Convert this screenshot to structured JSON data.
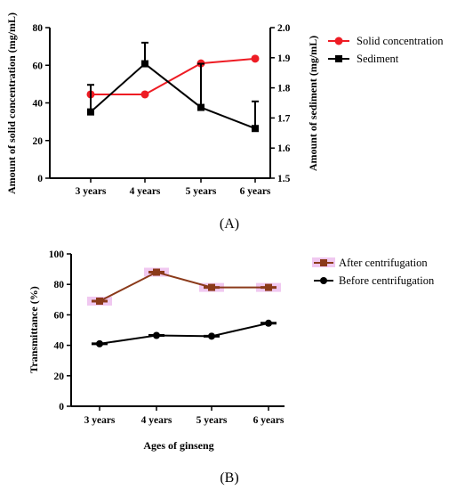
{
  "chart_data": [
    {
      "panel_label": "(A)",
      "type": "line",
      "categories": [
        "3 years",
        "4 years",
        "5 years",
        "6 years"
      ],
      "ylabel": "Amount of solid concentration (mg/mL)",
      "ylim": [
        0,
        80
      ],
      "yticks": [
        "0",
        "20",
        "40",
        "60",
        "80"
      ],
      "y2label": "Amount of sediment (mg/mL)",
      "y2lim": [
        1.5,
        2.0
      ],
      "y2ticks": [
        "1.5",
        "1.6",
        "1.7",
        "1.8",
        "1.9",
        "2.0"
      ],
      "legend_position": "top-right",
      "series": [
        {
          "name": "Solid concentration",
          "axis": "left",
          "marker": "circle",
          "color": "#ee1c24",
          "values": [
            44.5,
            44.5,
            61,
            63.5
          ],
          "err": [
            0,
            0,
            0,
            0
          ]
        },
        {
          "name": "Sediment",
          "axis": "right",
          "marker": "square",
          "color": "#000000",
          "values": [
            1.72,
            1.88,
            1.735,
            1.665
          ],
          "err": [
            0.09,
            0.07,
            0.145,
            0.09
          ]
        }
      ]
    },
    {
      "panel_label": "(B)",
      "type": "line",
      "categories": [
        "3 years",
        "4 years",
        "5 years",
        "6 years"
      ],
      "xlabel": "Ages of ginseng",
      "ylabel": "Transmittance (%)",
      "ylim": [
        0,
        100
      ],
      "yticks": [
        "0",
        "20",
        "40",
        "60",
        "80",
        "100"
      ],
      "legend_position": "top-right",
      "series": [
        {
          "name": "After centrifugation",
          "marker": "square",
          "color": "#8b3a1a",
          "highlight": "#f0c8f0",
          "values": [
            69,
            88,
            78,
            78
          ]
        },
        {
          "name": "Before centrifugation",
          "marker": "circle",
          "color": "#000000",
          "values": [
            41,
            46.5,
            46,
            54.5
          ]
        }
      ]
    }
  ]
}
